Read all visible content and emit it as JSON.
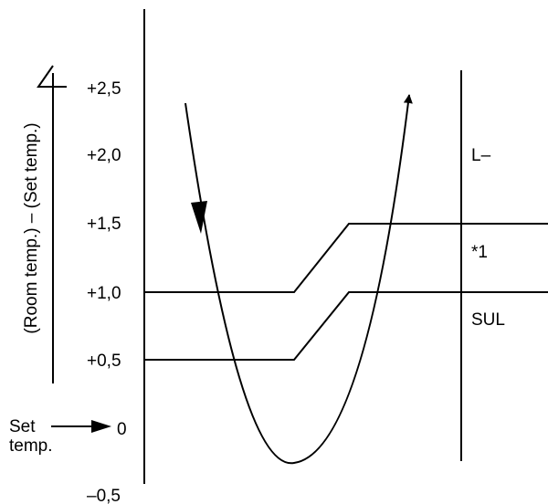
{
  "axis": {
    "vertical_label": "(Room temp.) – (Set temp.)",
    "ticks": [
      "+2,5",
      "+2,0",
      "+1,5",
      "+1,0",
      "+0,5",
      "0",
      "–0,5"
    ]
  },
  "set_temp": {
    "line1": "Set",
    "line2": "temp."
  },
  "zones": {
    "upper": "L–",
    "middle": "*1",
    "lower": "SUL"
  }
}
